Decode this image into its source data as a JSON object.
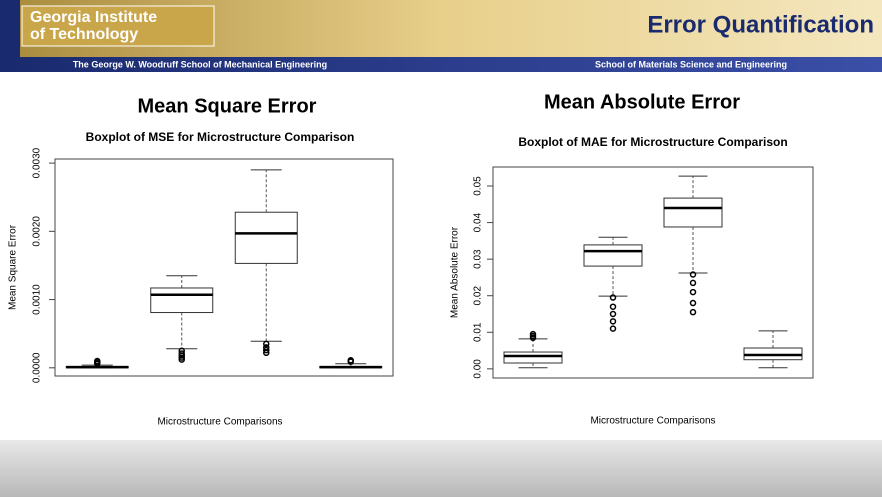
{
  "header": {
    "logo_lines": [
      "Georgia Institute",
      "of Technology"
    ],
    "title": "Error Quantification",
    "left_band": "The George W. Woodruff School of Mechanical Engineering",
    "right_band": "School of Materials Science and Engineering"
  },
  "chart_data": [
    {
      "type": "boxplot",
      "heading": "Mean Square Error",
      "title": "Boxplot of MSE for Microstructure Comparison",
      "ylabel": "Mean Square Error",
      "xlabel": "Microstructure Comparisons",
      "categories": [
        null,
        null,
        null,
        null
      ],
      "boxes": [
        {
          "min": 0,
          "q1": 0,
          "median": 1e-05,
          "q3": 2e-05,
          "max": 4e-05,
          "outliers": [
            6e-05,
            8e-05,
            0.0001
          ]
        },
        {
          "min": 0.00028,
          "q1": 0.00081,
          "median": 0.00107,
          "q3": 0.00117,
          "max": 0.00135,
          "outliers": [
            0.00012,
            0.00015,
            0.00018,
            0.00021,
            0.00025
          ]
        },
        {
          "min": 0.00039,
          "q1": 0.00153,
          "median": 0.00197,
          "q3": 0.00228,
          "max": 0.0029,
          "outliers": [
            0.00022,
            0.00026,
            0.0003,
            0.00035
          ]
        },
        {
          "min": 0,
          "q1": 0,
          "median": 1e-05,
          "q3": 2e-05,
          "max": 6e-05,
          "outliers": [
            9e-05,
            0.00011
          ]
        }
      ],
      "ylim": [
        -0.00012,
        0.00306
      ],
      "yticks": [
        {
          "value": 0,
          "label": "0.0000"
        },
        {
          "value": 0.001,
          "label": "0.0010"
        },
        {
          "value": 0.002,
          "label": "0.0020"
        },
        {
          "value": 0.003,
          "label": "0.0030"
        }
      ]
    },
    {
      "type": "boxplot",
      "heading": "Mean Absolute Error",
      "title": "Boxplot of MAE for Microstructure Comparison",
      "ylabel": "Mean Absolute Error",
      "xlabel": "Microstructure Comparisons",
      "categories": [
        null,
        null,
        null,
        null
      ],
      "boxes": [
        {
          "min": 0.0003,
          "q1": 0.0016,
          "median": 0.0035,
          "q3": 0.0046,
          "max": 0.0082,
          "outliers": [
            0.0085,
            0.009,
            0.0095
          ]
        },
        {
          "min": 0.0199,
          "q1": 0.0281,
          "median": 0.0322,
          "q3": 0.0339,
          "max": 0.036,
          "outliers": [
            0.011,
            0.013,
            0.015,
            0.017,
            0.0195
          ]
        },
        {
          "min": 0.0262,
          "q1": 0.0388,
          "median": 0.044,
          "q3": 0.0467,
          "max": 0.0527,
          "outliers": [
            0.0155,
            0.018,
            0.021,
            0.0235,
            0.0258
          ]
        },
        {
          "min": 0.0003,
          "q1": 0.0025,
          "median": 0.0038,
          "q3": 0.0057,
          "max": 0.0104,
          "outliers": []
        }
      ],
      "ylim": [
        -0.0025,
        0.0552
      ],
      "yticks": [
        {
          "value": 0,
          "label": "0.00"
        },
        {
          "value": 0.01,
          "label": "0.01"
        },
        {
          "value": 0.02,
          "label": "0.02"
        },
        {
          "value": 0.03,
          "label": "0.03"
        },
        {
          "value": 0.04,
          "label": "0.04"
        },
        {
          "value": 0.05,
          "label": "0.05"
        }
      ]
    }
  ]
}
